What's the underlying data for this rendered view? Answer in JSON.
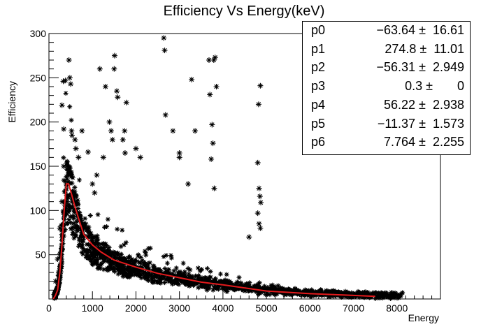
{
  "chart_data": {
    "type": "scatter",
    "title": "Efficiency Vs Energy(keV)",
    "xlabel": "Energy",
    "ylabel": "Efficiency",
    "xlim": [
      0,
      9000
    ],
    "ylim": [
      0,
      300
    ],
    "x_ticks": [
      0,
      1000,
      2000,
      3000,
      4000,
      5000,
      6000,
      7000,
      8000
    ],
    "y_ticks": [
      50,
      100,
      150,
      200,
      250,
      300
    ],
    "grid": false,
    "marker": "*",
    "colors": {
      "points": "#000000",
      "fit": "#e31a1c"
    },
    "series": [
      {
        "type": "scatter",
        "points": [
          [
            120,
            5
          ],
          [
            150,
            20
          ],
          [
            200,
            45
          ],
          [
            250,
            80
          ],
          [
            300,
            110
          ],
          [
            340,
            150
          ],
          [
            380,
            122
          ],
          [
            400,
            130
          ],
          [
            420,
            110
          ],
          [
            300,
            219
          ],
          [
            340,
            192
          ],
          [
            330,
            246
          ],
          [
            380,
            247
          ],
          [
            460,
            270
          ],
          [
            480,
            250
          ],
          [
            500,
            243
          ],
          [
            520,
            190
          ],
          [
            530,
            185
          ],
          [
            600,
            180
          ],
          [
            620,
            170
          ],
          [
            680,
            160
          ],
          [
            760,
            190
          ],
          [
            900,
            166
          ],
          [
            1000,
            130
          ],
          [
            1050,
            120
          ],
          [
            1100,
            140
          ],
          [
            1170,
            260
          ],
          [
            1250,
            160
          ],
          [
            1300,
            240
          ],
          [
            1390,
            200
          ],
          [
            1430,
            190
          ],
          [
            1460,
            180
          ],
          [
            1500,
            260
          ],
          [
            1510,
            275
          ],
          [
            1560,
            235
          ],
          [
            1580,
            228
          ],
          [
            1700,
            180
          ],
          [
            1740,
            190
          ],
          [
            1750,
            165
          ],
          [
            1780,
            222
          ],
          [
            2000,
            170
          ],
          [
            2100,
            160
          ],
          [
            2640,
            295
          ],
          [
            2660,
            281
          ],
          [
            2680,
            208
          ],
          [
            2850,
            190
          ],
          [
            3000,
            165
          ],
          [
            3000,
            160
          ],
          [
            3200,
            130
          ],
          [
            3280,
            248
          ],
          [
            3360,
            190
          ],
          [
            3680,
            270
          ],
          [
            3750,
            197
          ],
          [
            3770,
            176
          ],
          [
            3790,
            270
          ],
          [
            3820,
            273
          ],
          [
            3850,
            240
          ],
          [
            3730,
            158
          ],
          [
            3800,
            125
          ],
          [
            3700,
            231
          ],
          [
            4600,
            70
          ],
          [
            4800,
            154
          ],
          [
            4830,
            125
          ],
          [
            4850,
            116
          ],
          [
            4870,
            109
          ],
          [
            4820,
            220
          ],
          [
            4860,
            241
          ],
          [
            4800,
            97
          ],
          [
            4830,
            85
          ],
          [
            4860,
            80
          ]
        ]
      },
      {
        "type": "line",
        "x": [
          100,
          150,
          200,
          250,
          300,
          350,
          400,
          450,
          500,
          600,
          700,
          800,
          1000,
          1200,
          1500,
          2000,
          2500,
          3000,
          3500,
          4000,
          5000,
          6000,
          7000,
          7500
        ],
        "y": [
          0,
          4,
          10,
          30,
          62,
          100,
          130,
          130,
          122,
          104,
          88,
          73,
          61,
          53,
          44,
          36,
          29,
          24,
          19,
          16,
          9,
          6,
          4,
          3
        ]
      }
    ],
    "stats": [
      {
        "name": "p0",
        "value": "−63.64 ±  16.61"
      },
      {
        "name": "p1",
        "value": "274.8 ±  11.01"
      },
      {
        "name": "p2",
        "value": "−56.31 ±  2.949"
      },
      {
        "name": "p3",
        "value": "0.3 ±       0"
      },
      {
        "name": "p4",
        "value": "56.22 ±  2.938"
      },
      {
        "name": "p5",
        "value": "−11.37 ±  1.573"
      },
      {
        "name": "p6",
        "value": "7.764 ±  2.255"
      }
    ]
  }
}
